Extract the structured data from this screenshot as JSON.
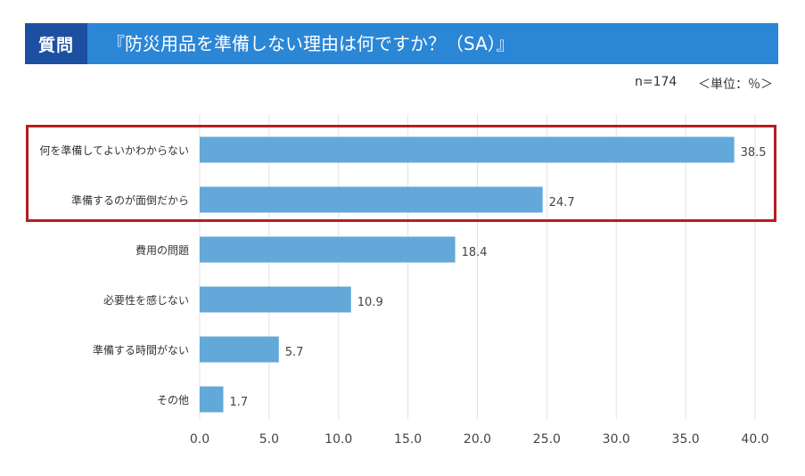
{
  "header": {
    "badge": "質問",
    "title": "『防災用品を準備しない理由は何ですか？（SA）』"
  },
  "meta": {
    "sample": "n=174",
    "unit": "＜単位：％＞"
  },
  "colors": {
    "header_bg": "#2b86d6",
    "badge_bg": "#1c4fa0",
    "bar": "#62a8d8",
    "highlight": "#b51d22"
  },
  "chart_data": {
    "type": "bar",
    "orientation": "horizontal",
    "categories": [
      "何を準備してよいかわからない",
      "準備するのが面倒だから",
      "費用の問題",
      "必要性を感じない",
      "準備する時間がない",
      "その他"
    ],
    "values": [
      38.5,
      24.7,
      18.4,
      10.9,
      5.7,
      1.7
    ],
    "value_labels": [
      "38.5",
      "24.7",
      "18.4",
      "10.9",
      "5.7",
      "1.7"
    ],
    "xlim": [
      0,
      40
    ],
    "xticks": [
      "0.0",
      "5.0",
      "10.0",
      "15.0",
      "20.0",
      "25.0",
      "30.0",
      "35.0",
      "40.0"
    ],
    "grid": true,
    "highlighted_categories": [
      "何を準備してよいかわからない",
      "準備するのが面倒だから"
    ]
  }
}
